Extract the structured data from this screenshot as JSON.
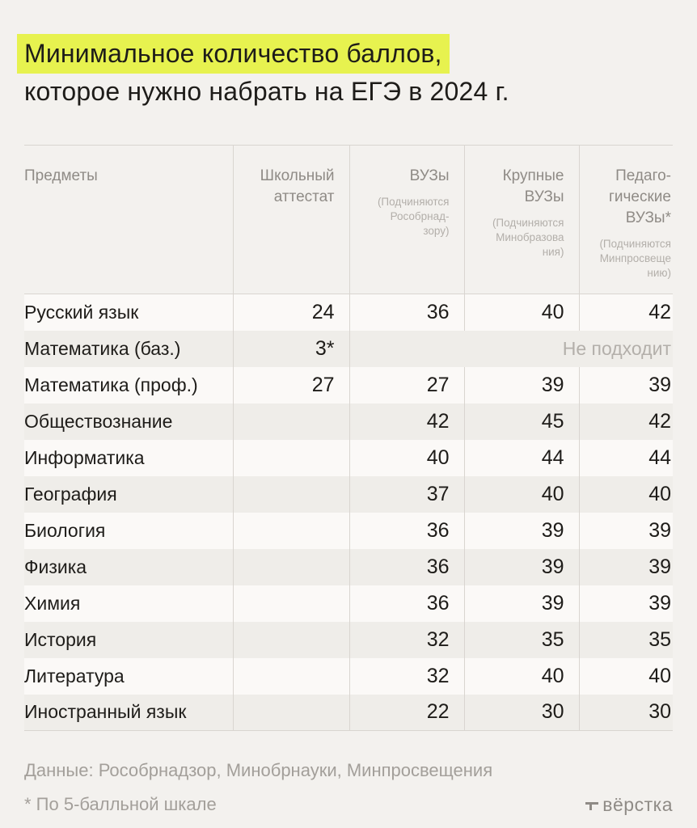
{
  "title": {
    "line1": "Минимальное количество баллов,",
    "line2": "которое нужно набрать на ЕГЭ в 2024 г."
  },
  "colors": {
    "highlight": "#e7f24f",
    "background": "#f3f1ee"
  },
  "table_display": {
    "columns": [
      {
        "label": "Предметы",
        "sub": ""
      },
      {
        "label": "Школьный\nаттестат",
        "sub": ""
      },
      {
        "label": "ВУЗы",
        "sub": "(Подчиняются\nРособрнад-\nзору)"
      },
      {
        "label": "Крупные\nВУЗы",
        "sub": "(Подчиняются\nМинобразова\nния)"
      },
      {
        "label": "Педаго-\nгические\nВУЗы*",
        "sub": "(Подчиняются\nМинпросвеще\nнию)"
      }
    ]
  },
  "chart_data": {
    "type": "table",
    "title": "Минимальное количество баллов, которое нужно набрать на ЕГЭ в 2024 г.",
    "columns": [
      "Предметы",
      "Школьный аттестат",
      "ВУЗы (Подчиняются Рособрнадзору)",
      "Крупные ВУЗы (Подчиняются Минобразования)",
      "Педагогические ВУЗы* (Подчиняются Минпросвещению)"
    ],
    "rows": [
      {
        "subject": "Русский язык",
        "values": [
          "24",
          "36",
          "40",
          "42"
        ]
      },
      {
        "subject": "Математика (баз.)",
        "values": [
          "3*"
        ],
        "note": "Не подходит"
      },
      {
        "subject": "Математика (проф.)",
        "values": [
          "27",
          "27",
          "39",
          "39"
        ]
      },
      {
        "subject": "Обществознание",
        "values": [
          "",
          "42",
          "45",
          "42"
        ]
      },
      {
        "subject": "Информатика",
        "values": [
          "",
          "40",
          "44",
          "44"
        ]
      },
      {
        "subject": "География",
        "values": [
          "",
          "37",
          "40",
          "40"
        ]
      },
      {
        "subject": "Биология",
        "values": [
          "",
          "36",
          "39",
          "39"
        ]
      },
      {
        "subject": "Физика",
        "values": [
          "",
          "36",
          "39",
          "39"
        ]
      },
      {
        "subject": "Химия",
        "values": [
          "",
          "36",
          "39",
          "39"
        ]
      },
      {
        "subject": "История",
        "values": [
          "",
          "32",
          "35",
          "35"
        ]
      },
      {
        "subject": "Литература",
        "values": [
          "",
          "32",
          "40",
          "40"
        ]
      },
      {
        "subject": "Иностранный язык",
        "values": [
          "",
          "22",
          "30",
          "30"
        ]
      }
    ]
  },
  "footer": {
    "source": "Данные: Рособрнадзор, Минобрнауки, Минпросвещения",
    "note": "* По 5-балльной шкале",
    "logo": "вёрстка"
  }
}
